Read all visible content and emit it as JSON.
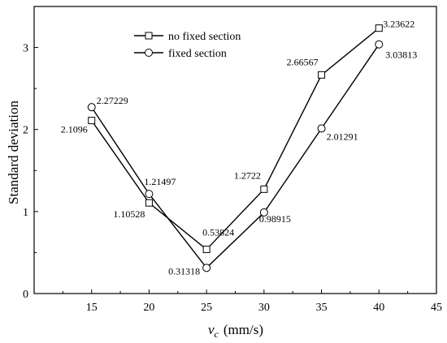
{
  "chart_data": {
    "type": "line",
    "xlabel_var": "v",
    "xlabel_sub": "c",
    "xlabel_unit": "(mm/s)",
    "ylabel": "Standard deviation",
    "xlim": [
      10,
      45
    ],
    "ylim": [
      0,
      3.5
    ],
    "xticks": [
      15,
      20,
      25,
      30,
      35,
      40,
      45
    ],
    "yticks": [
      0,
      1,
      2,
      3
    ],
    "grid": false,
    "legend_position": "top-center",
    "series": [
      {
        "name": "no fixed section",
        "marker": "square",
        "color": "#000000",
        "x": [
          15,
          20,
          25,
          30,
          35,
          40
        ],
        "y": [
          2.1096,
          1.10528,
          0.53824,
          1.2722,
          2.66567,
          3.23622
        ],
        "labels": [
          "2.1096",
          "1.10528",
          "0.53824",
          "1.2722",
          "2.66567",
          "3.23622"
        ]
      },
      {
        "name": "fixed section",
        "marker": "circle",
        "color": "#000000",
        "x": [
          15,
          20,
          25,
          30,
          35,
          40
        ],
        "y": [
          2.27229,
          1.21497,
          0.31318,
          0.98915,
          2.01291,
          3.03813
        ],
        "labels": [
          "2.27229",
          "1.21497",
          "0.31318",
          "0.98915",
          "2.01291",
          "3.03813"
        ]
      }
    ]
  }
}
